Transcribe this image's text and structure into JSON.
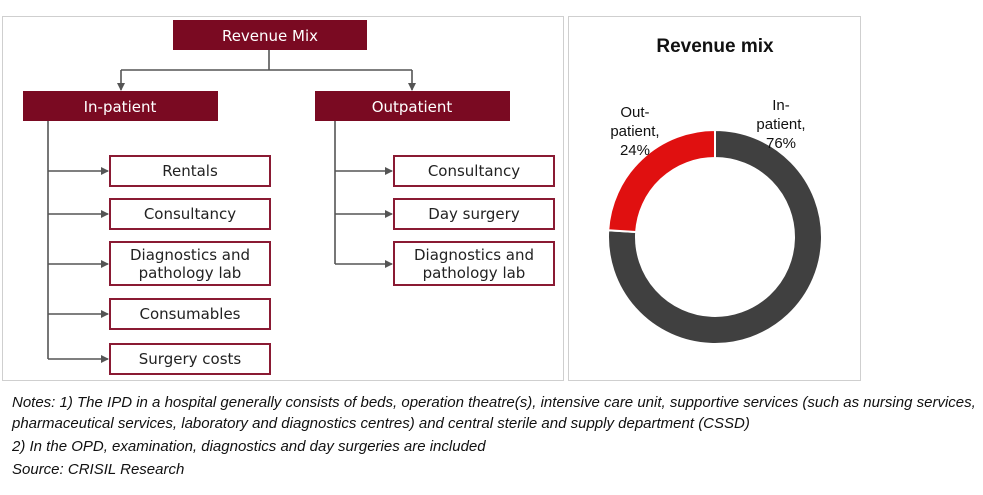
{
  "diagram": {
    "root": "Revenue Mix",
    "inpatient": {
      "title": "In-patient",
      "items": [
        "Rentals",
        "Consultancy",
        "Diagnostics and\npathology lab",
        "Consumables",
        "Surgery costs"
      ]
    },
    "outpatient": {
      "title": "Outpatient",
      "items": [
        "Consultancy",
        "Day surgery",
        "Diagnostics and\npathology lab"
      ]
    }
  },
  "chart_data": {
    "type": "pie",
    "donut": true,
    "title": "Revenue mix",
    "slices": [
      {
        "label_lines": [
          "In-",
          "patient,",
          "76%"
        ],
        "value": 76,
        "color": "#404040"
      },
      {
        "label_lines": [
          "Out-",
          "patient,",
          "24%"
        ],
        "value": 24,
        "color": "#e01010"
      }
    ],
    "legend": "none"
  },
  "notes": {
    "note1": "Notes: 1) The IPD in a hospital generally consists of beds, operation theatre(s), intensive care unit, supportive services (such as nursing services, pharmaceutical services, laboratory and diagnostics centres) and central sterile and supply department (CSSD)",
    "note2": "2) In the OPD, examination, diagnostics and day surgeries are included",
    "source": "Source: CRISIL Research"
  }
}
